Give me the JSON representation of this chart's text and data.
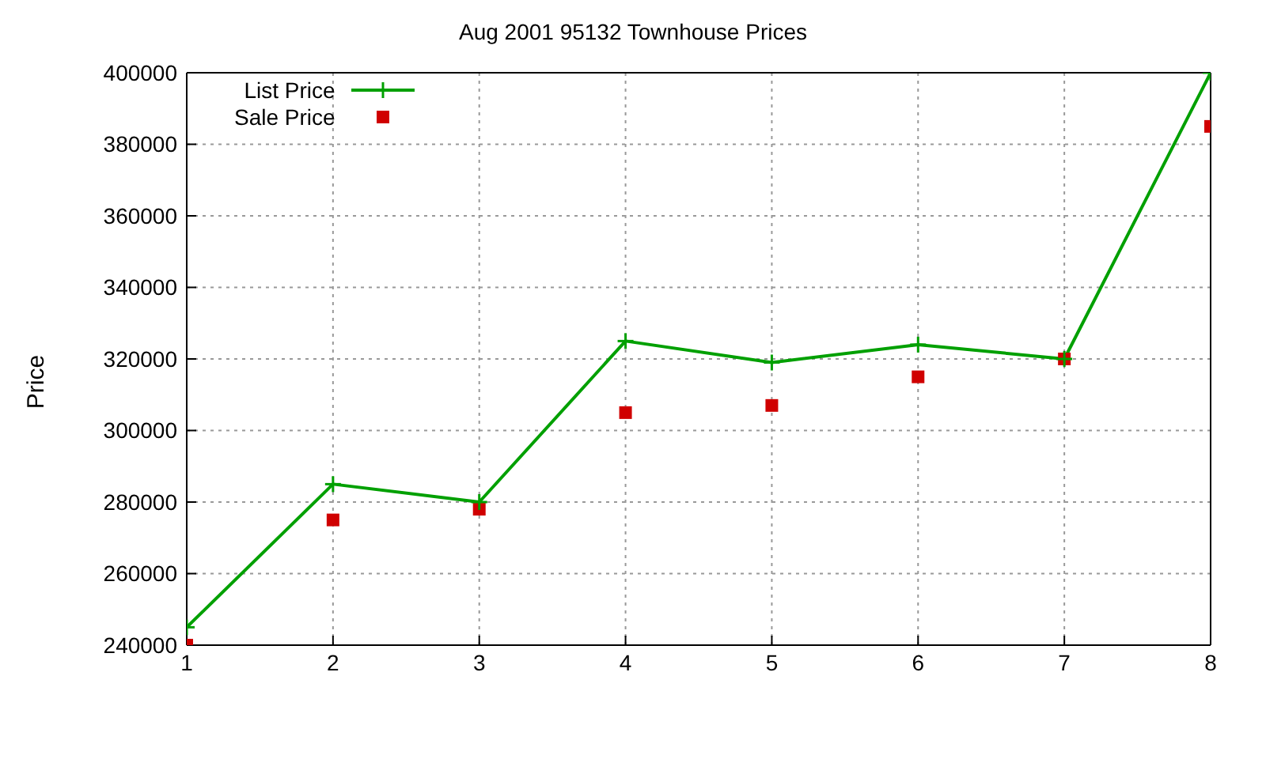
{
  "chart_data": {
    "type": "line",
    "title": "Aug 2001 95132 Townhouse Prices",
    "ylabel": "Price",
    "x": [
      1,
      2,
      3,
      4,
      5,
      6,
      7,
      8
    ],
    "series": [
      {
        "name": "List Price",
        "marker": "cross",
        "color": "#00a000",
        "values": [
          245000,
          285000,
          280000,
          325000,
          319000,
          324000,
          320000,
          400000
        ]
      },
      {
        "name": "Sale Price",
        "type": "scatter",
        "marker": "square",
        "color": "#d00000",
        "values": [
          240000,
          275000,
          278000,
          305000,
          307000,
          315000,
          320000,
          385000
        ]
      }
    ],
    "xlim": [
      1,
      8
    ],
    "xticks": [
      1,
      2,
      3,
      4,
      5,
      6,
      7,
      8
    ],
    "ylim": [
      240000,
      400000
    ],
    "yticks": [
      240000,
      260000,
      280000,
      300000,
      320000,
      340000,
      360000,
      380000,
      400000
    ],
    "grid": true,
    "legend": "top left"
  }
}
